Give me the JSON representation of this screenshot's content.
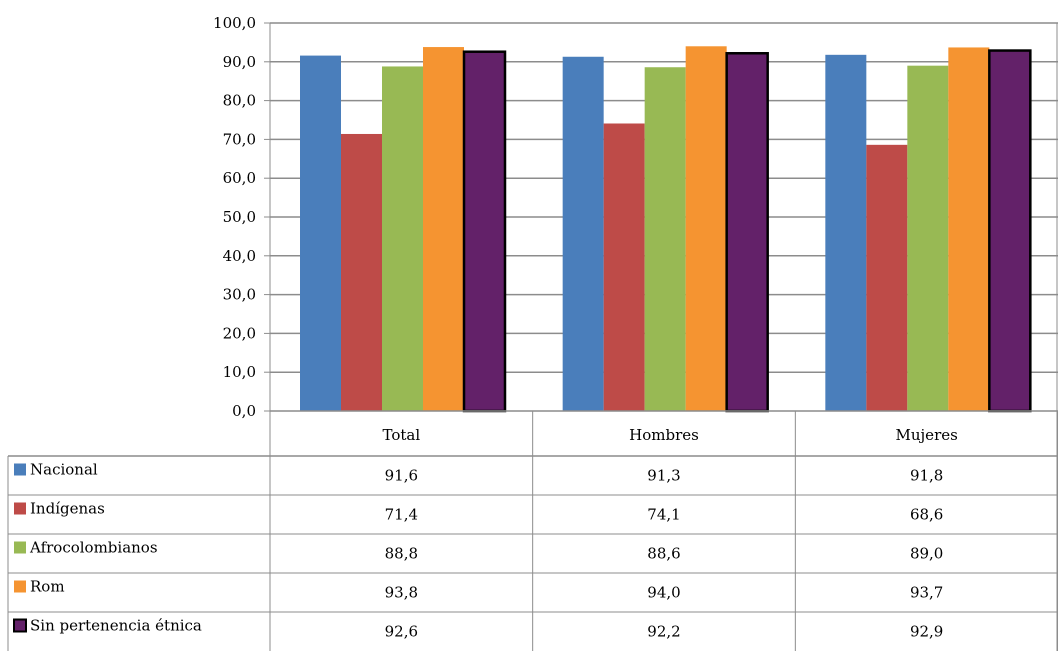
{
  "chart_data": {
    "type": "bar",
    "categories": [
      "Total",
      "Hombres",
      "Mujeres"
    ],
    "series": [
      {
        "name": "Nacional",
        "values": [
          91.6,
          91.3,
          91.8
        ],
        "labels": [
          "91,6",
          "91,3",
          "91,8"
        ],
        "color": "#4a7ebb"
      },
      {
        "name": "Indígenas",
        "values": [
          71.4,
          74.1,
          68.6
        ],
        "labels": [
          "71,4",
          "74,1",
          "68,6"
        ],
        "color": "#be4b48"
      },
      {
        "name": "Afrocolombianos",
        "values": [
          88.8,
          88.6,
          89.0
        ],
        "labels": [
          "88,8",
          "88,6",
          "89,0"
        ],
        "color": "#98b954"
      },
      {
        "name": "Rom",
        "values": [
          93.8,
          94.0,
          93.7
        ],
        "labels": [
          "93,8",
          "94,0",
          "93,7"
        ],
        "color": "#f59431"
      },
      {
        "name": "Sin pertenencia étnica",
        "values": [
          92.6,
          92.2,
          92.9
        ],
        "labels": [
          "92,6",
          "92,2",
          "92,9"
        ],
        "color": "#632169",
        "outlined": true
      }
    ],
    "ylim": [
      0,
      100
    ],
    "yticks": [
      0,
      10,
      20,
      30,
      40,
      50,
      60,
      70,
      80,
      90,
      100
    ],
    "ytick_labels": [
      "0,0",
      "10,0",
      "20,0",
      "30,0",
      "40,0",
      "50,0",
      "60,0",
      "70,0",
      "80,0",
      "90,0",
      "100,0"
    ],
    "grid": true,
    "legend": "data-table",
    "title": "",
    "xlabel": "",
    "ylabel": ""
  }
}
